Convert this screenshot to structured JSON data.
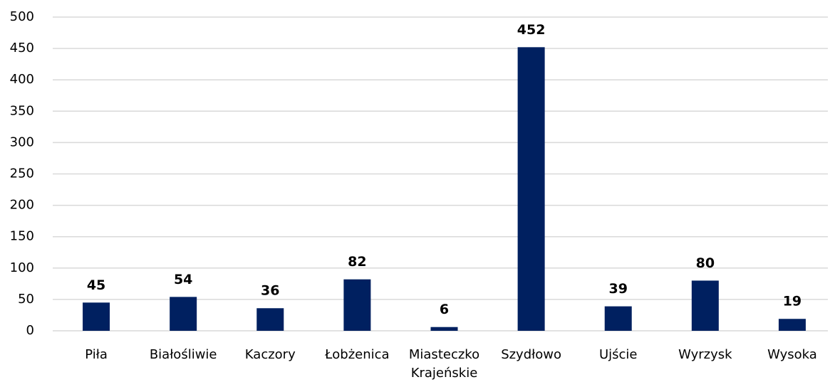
{
  "chart_data": {
    "type": "bar",
    "categories": [
      "Piła",
      "Białośliwie",
      "Kaczory",
      "Łobżenica",
      "Miasteczko Krajeńskie",
      "Szydłowo",
      "Ujście",
      "Wyrzysk",
      "Wysoka"
    ],
    "values": [
      45,
      54,
      36,
      82,
      6,
      452,
      39,
      80,
      19
    ],
    "color": "#002060",
    "ylim": [
      0,
      500
    ],
    "yticks": [
      0,
      50,
      100,
      150,
      200,
      250,
      300,
      350,
      400,
      450,
      500
    ],
    "grid": true
  }
}
